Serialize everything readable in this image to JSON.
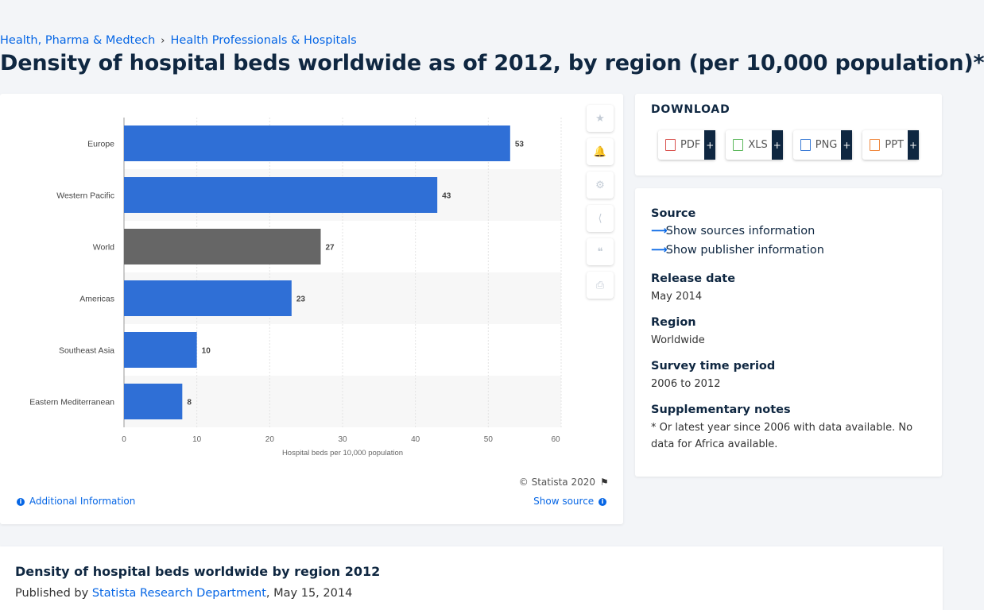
{
  "breadcrumb": [
    {
      "label": "Health, Pharma & Medtech"
    },
    {
      "label": "Health Professionals & Hospitals"
    }
  ],
  "breadcrumb_separator": "›",
  "page_title": "Density of hospital beds worldwide as of 2012, by region (per 10,000 population)*",
  "chart_tools": [
    {
      "icon": "star-icon",
      "glyph": "★"
    },
    {
      "icon": "bell-icon",
      "glyph": "🔔"
    },
    {
      "icon": "gear-icon",
      "glyph": "⚙"
    },
    {
      "icon": "share-icon",
      "glyph": "⟨"
    },
    {
      "icon": "quote-icon",
      "glyph": "❝"
    },
    {
      "icon": "print-icon",
      "glyph": "⎙"
    }
  ],
  "chart_data": {
    "type": "bar",
    "orientation": "horizontal",
    "categories": [
      "Europe",
      "Western Pacific",
      "World",
      "Americas",
      "Southeast Asia",
      "Eastern Mediterranean"
    ],
    "values": [
      53,
      43,
      27,
      23,
      10,
      8
    ],
    "value_labels": [
      "53",
      "43",
      "27",
      "23",
      "10",
      "8"
    ],
    "highlight_category": "World",
    "xlabel": "Hospital beds per 10,000 population",
    "xlim": [
      0,
      60
    ],
    "x_ticks": [
      "0",
      "10",
      "20",
      "30",
      "40",
      "50",
      "60"
    ],
    "grid": true,
    "colors": {
      "bar": "#2f6fd6",
      "highlight": "#666666",
      "band": "#f7f7f7",
      "grid": "#e3e3e3"
    }
  },
  "copyright": "© Statista 2020",
  "additional_info": "Additional Information",
  "show_source": "Show source",
  "download": {
    "title": "DOWNLOAD",
    "buttons": [
      {
        "label": "PDF",
        "color": "#d9534f"
      },
      {
        "label": "XLS",
        "color": "#5cb85c"
      },
      {
        "label": "PNG",
        "color": "#3a7bd5"
      },
      {
        "label": "PPT",
        "color": "#f0883e"
      }
    ],
    "plus": "+"
  },
  "info": {
    "source_label": "Source",
    "show_sources": "Show sources information",
    "show_publisher": "Show publisher information",
    "release_label": "Release date",
    "release_value": "May 2014",
    "region_label": "Region",
    "region_value": "Worldwide",
    "survey_label": "Survey time period",
    "survey_value": "2006 to 2012",
    "notes_label": "Supplementary notes",
    "notes_value": "* Or latest year since 2006 with data available. No data for Africa available."
  },
  "bottom": {
    "title": "Density of hospital beds worldwide by region 2012",
    "published_by": "Published by",
    "publisher": "Statista Research Department",
    "date": ", May 15, 2014"
  }
}
